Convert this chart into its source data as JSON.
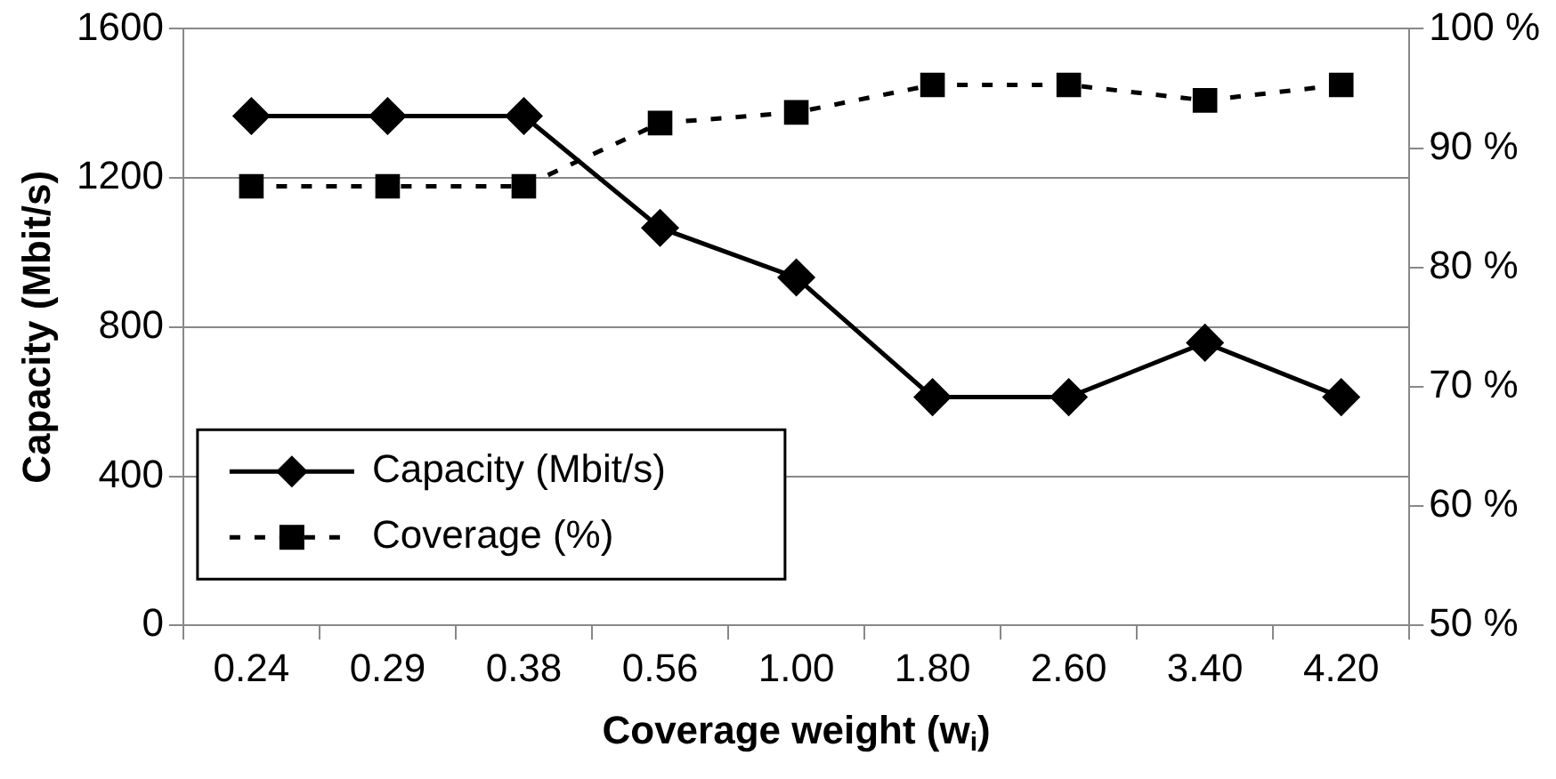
{
  "chart_data": {
    "type": "line",
    "xlabel": "Coverage weight (w$_{i}$)",
    "ylabel": "Capacity (Mbit/s)",
    "categories": [
      "0.24",
      "0.29",
      "0.38",
      "0.56",
      "1.00",
      "1.80",
      "2.60",
      "3.40",
      "4.20"
    ],
    "series": [
      {
        "name": "Capacity (Mbit/s)",
        "color": "#000000",
        "marker": "diamond",
        "line_style": "solid",
        "values": [
          1366,
          1366,
          1366,
          1066,
          933,
          612,
          612,
          758,
          612
        ]
      },
      {
        "name": "Coverage (%)",
        "color": "#000000",
        "marker": "square",
        "line_style": "dashed",
        "axis": "y2",
        "values": [
          86.8,
          86.8,
          86.8,
          92.1,
          93.0,
          95.3,
          95.3,
          94.0,
          95.3
        ]
      }
    ],
    "ylim": [
      0,
      1600
    ],
    "yticks": [
      0,
      400,
      800,
      1200,
      1600
    ],
    "y2lim": [
      50,
      100
    ],
    "y2ticks": [
      {
        "value": 50,
        "label": "50 %"
      },
      {
        "value": 60,
        "label": "60 %"
      },
      {
        "value": 70,
        "label": "70 %"
      },
      {
        "value": 80,
        "label": "80 %"
      },
      {
        "value": 90,
        "label": "90 %"
      },
      {
        "value": 100,
        "label": "100 %"
      }
    ],
    "grid": "y",
    "legend": "bottom left"
  }
}
